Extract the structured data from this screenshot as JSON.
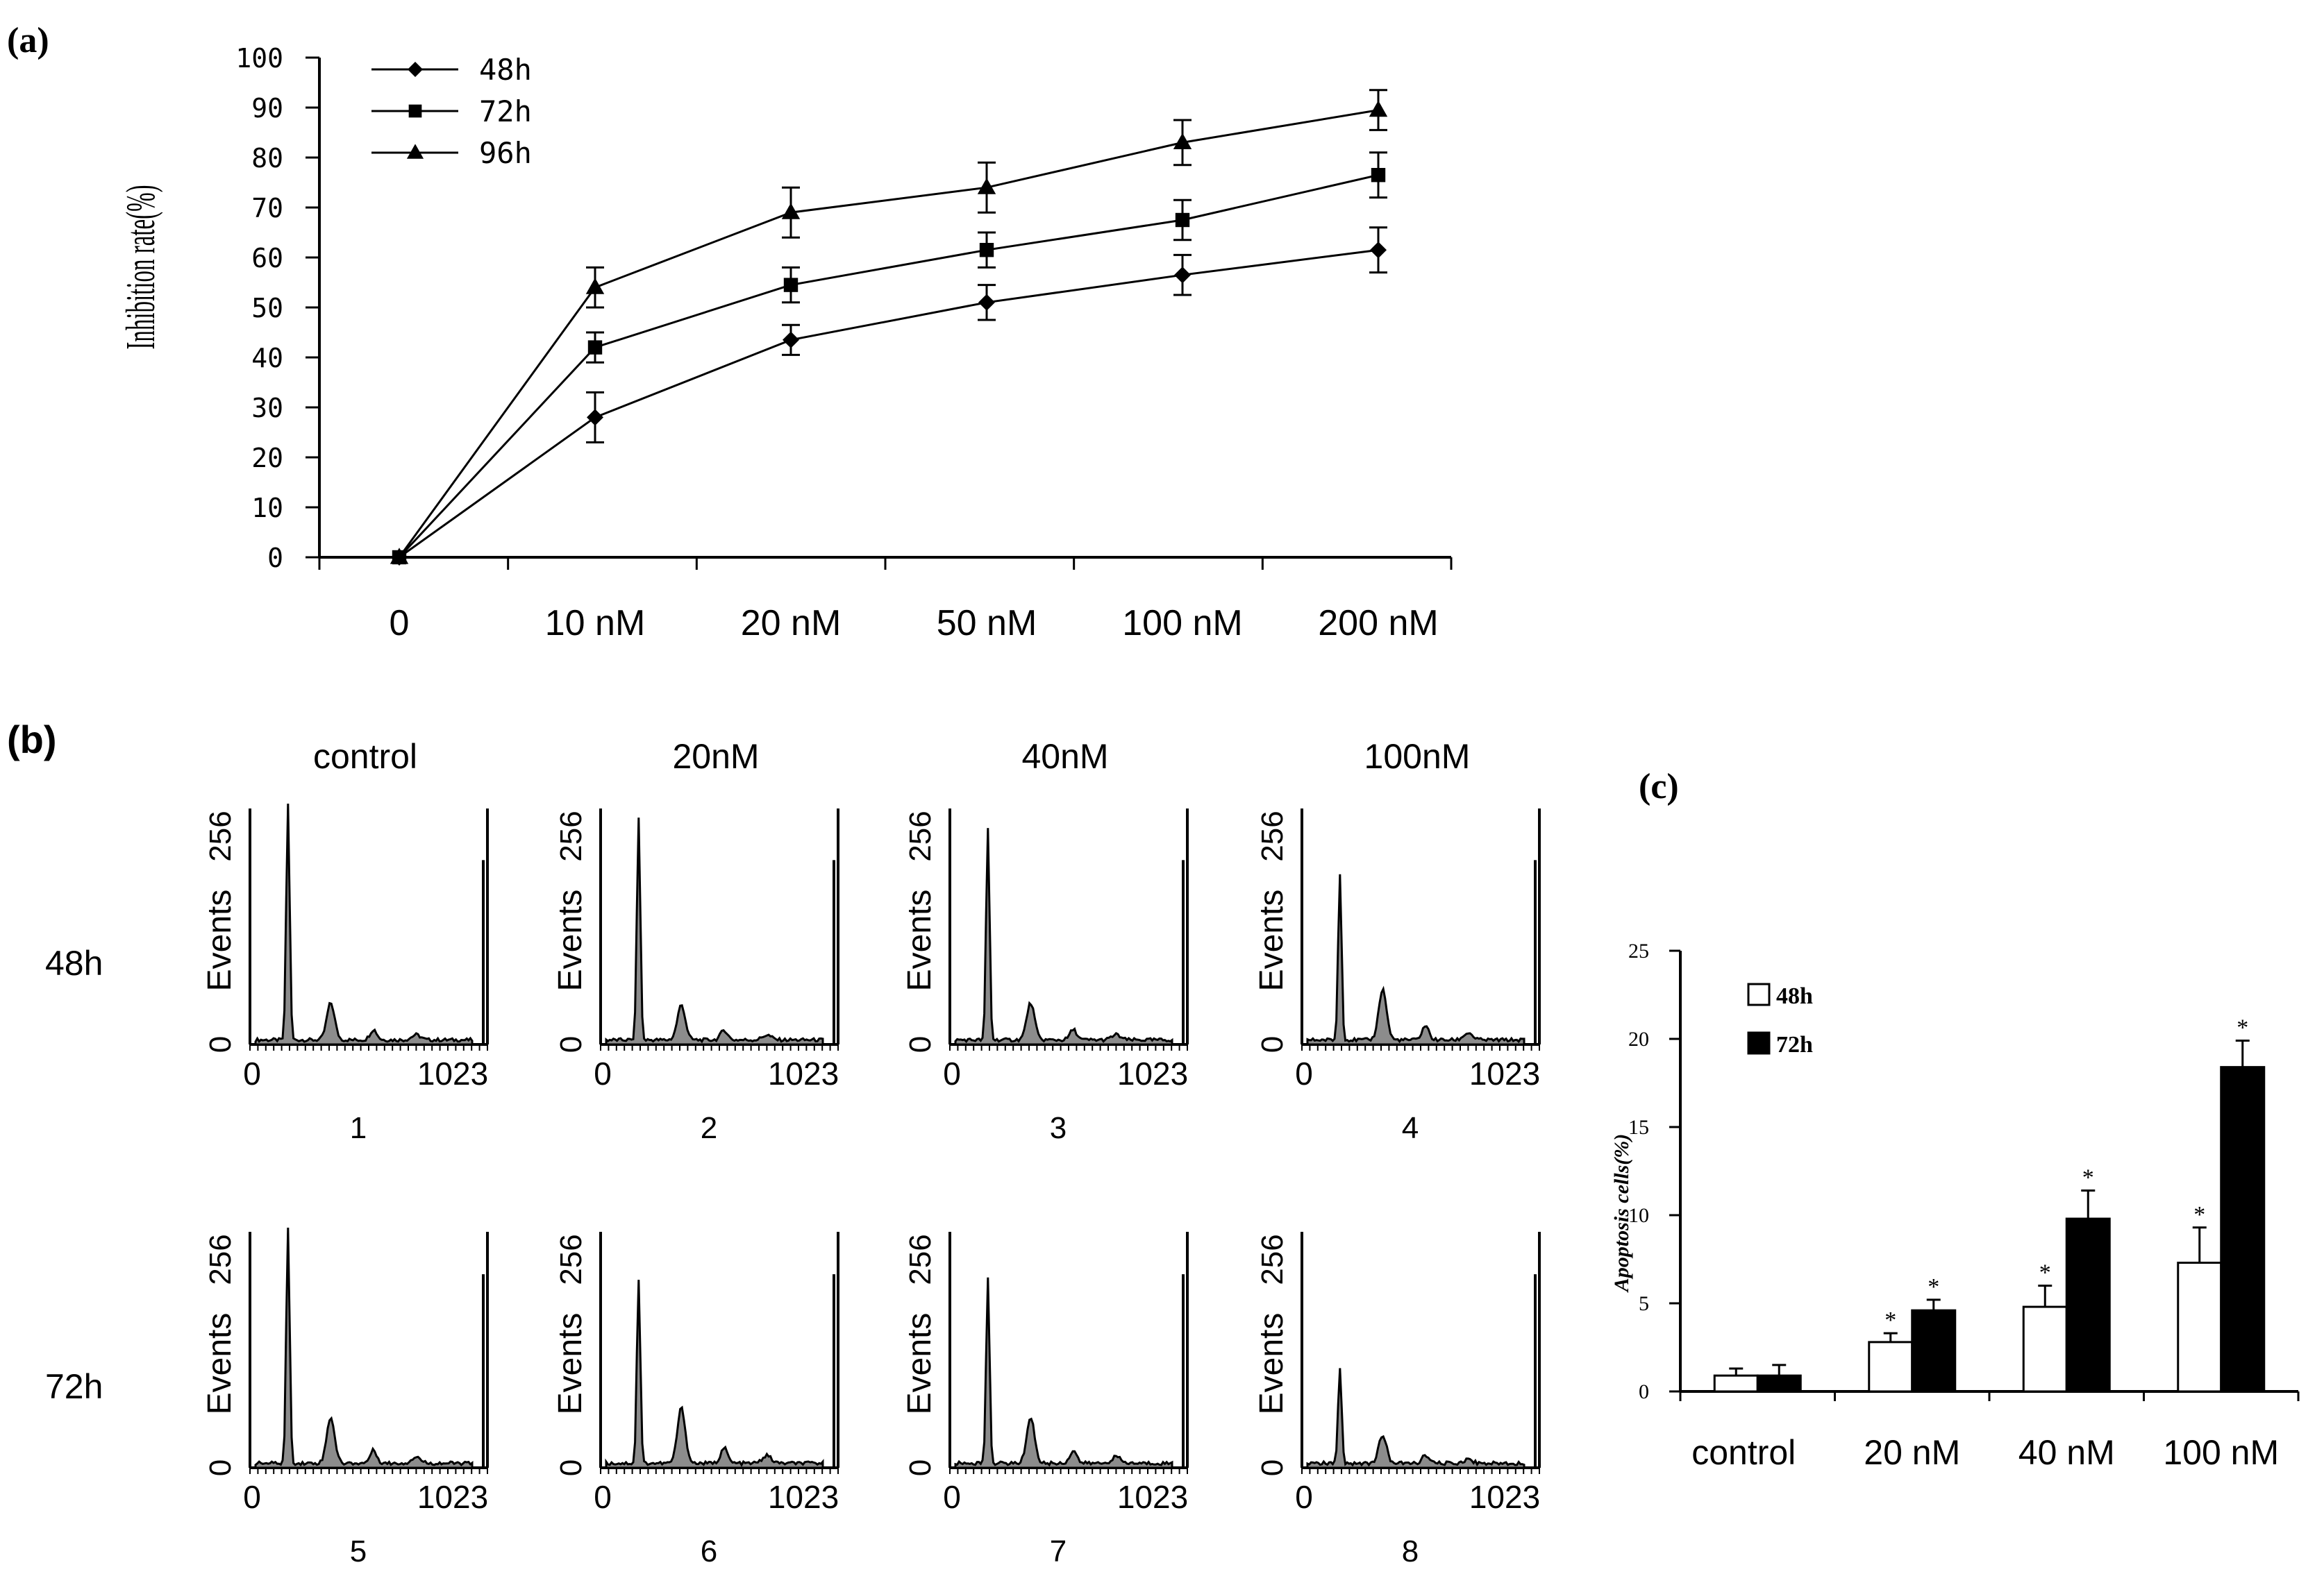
{
  "panel_labels": {
    "a": "(a)",
    "b": "(b)",
    "c": "(c)"
  },
  "chart_data": [
    {
      "type": "line",
      "panel": "(a)",
      "title": "",
      "xlabel": "",
      "ylabel": "Inhibition rate(%)",
      "categories": [
        "0",
        "10 nM",
        "20 nM",
        "50 nM",
        "100 nM",
        "200 nM"
      ],
      "ylim": [
        0,
        100
      ],
      "yticks": [
        "0",
        "10",
        "20",
        "30",
        "40",
        "50",
        "60",
        "70",
        "80",
        "90",
        "100"
      ],
      "legend_position": "top-left",
      "series": [
        {
          "name": "48h",
          "marker": "diamond",
          "values": [
            0,
            28,
            43.5,
            51,
            56.5,
            61.5
          ],
          "errors": [
            0,
            5,
            3,
            3.5,
            4,
            4.5
          ]
        },
        {
          "name": "72h",
          "marker": "square",
          "values": [
            0,
            42,
            54.5,
            61.5,
            67.5,
            76.5
          ],
          "errors": [
            0,
            3,
            3.5,
            3.5,
            4,
            4.5
          ]
        },
        {
          "name": "96h",
          "marker": "triangle",
          "values": [
            0,
            54,
            69,
            74,
            83,
            89.5
          ],
          "errors": [
            0,
            4,
            5,
            5,
            4.5,
            4
          ]
        }
      ]
    },
    {
      "type": "histogram-grid",
      "panel": "(b)",
      "column_titles": [
        "control",
        "20nM",
        "40nM",
        "100nM"
      ],
      "row_labels": [
        "48h",
        "72h"
      ],
      "ylabel": "Events",
      "ytick_top": "256",
      "ytick_bottom": "0",
      "xtick_left": "0",
      "xtick_right": "1023",
      "panel_numbers": [
        "1",
        "2",
        "3",
        "4",
        "5",
        "6",
        "7",
        "8"
      ],
      "histograms": [
        {
          "g1_height": 256,
          "g2_height": 40,
          "spike_height": 200
        },
        {
          "g1_height": 240,
          "g2_height": 38,
          "spike_height": 200
        },
        {
          "g1_height": 230,
          "g2_height": 40,
          "spike_height": 200
        },
        {
          "g1_height": 180,
          "g2_height": 55,
          "spike_height": 200
        },
        {
          "g1_height": 256,
          "g2_height": 50,
          "spike_height": 210
        },
        {
          "g1_height": 200,
          "g2_height": 60,
          "spike_height": 210
        },
        {
          "g1_height": 200,
          "g2_height": 50,
          "spike_height": 210
        },
        {
          "g1_height": 105,
          "g2_height": 30,
          "spike_height": 210
        }
      ]
    },
    {
      "type": "bar",
      "panel": "(c)",
      "ylabel": "Apoptosis cells(%)",
      "categories": [
        "control",
        "20 nM",
        "40 nM",
        "100 nM"
      ],
      "ylim": [
        0,
        25
      ],
      "yticks": [
        "0",
        "5",
        "10",
        "15",
        "20",
        "25"
      ],
      "legend_position": "top-left",
      "series": [
        {
          "name": "48h",
          "color": "#ffffff",
          "values": [
            0.9,
            2.8,
            4.8,
            7.3
          ],
          "errors": [
            0.4,
            0.5,
            1.2,
            2.0
          ],
          "significant": [
            false,
            true,
            true,
            true
          ]
        },
        {
          "name": "72h",
          "color": "#000000",
          "values": [
            0.9,
            4.6,
            9.8,
            18.4
          ],
          "errors": [
            0.6,
            0.6,
            1.6,
            1.5
          ],
          "significant": [
            false,
            true,
            true,
            true
          ]
        }
      ],
      "significance_mark": "*"
    }
  ]
}
